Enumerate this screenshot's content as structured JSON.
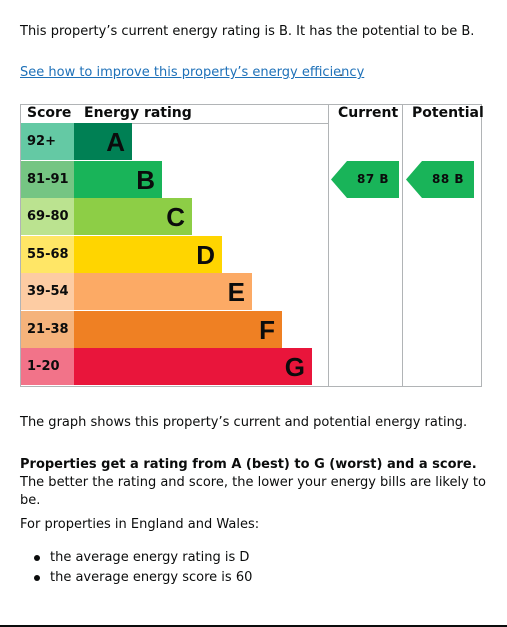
{
  "intro": "This property’s current energy rating is B. It has the potential to be B.",
  "improve_link": "See how to improve this property’s energy efficiency",
  "improve_link_suffix": ".",
  "chart": {
    "headers": {
      "score": "Score",
      "rating": "Energy rating",
      "current": "Current",
      "potential": "Potential"
    },
    "bands": [
      {
        "range": "92+",
        "letter": "A",
        "color": "#008054",
        "cellColor": "#64c9a4"
      },
      {
        "range": "81-91",
        "letter": "B",
        "color": "#19b459",
        "cellColor": "#75c583"
      },
      {
        "range": "69-80",
        "letter": "C",
        "color": "#8dce46",
        "cellColor": "#bbe390"
      },
      {
        "range": "55-68",
        "letter": "D",
        "color": "#ffd500",
        "cellColor": "#ffe666"
      },
      {
        "range": "39-54",
        "letter": "E",
        "color": "#fcaa65",
        "cellColor": "#fdcca3"
      },
      {
        "range": "21-38",
        "letter": "F",
        "color": "#ef8023",
        "cellColor": "#f5b37b"
      },
      {
        "range": "1-20",
        "letter": "G",
        "color": "#e9153b",
        "cellColor": "#f27389"
      }
    ],
    "current": {
      "label": "87 B",
      "score": 87,
      "band": "B",
      "color": "#19b459"
    },
    "potential": {
      "label": "88 B",
      "score": 88,
      "band": "B",
      "color": "#19b459"
    }
  },
  "caption": "The graph shows this property’s current and potential energy rating.",
  "range_bold": "Properties get a rating from A (best) to G (worst) and a score.",
  "range_rest": " The better the rating and score, the lower your energy bills are likely to be.",
  "region": "For properties in England and Wales:",
  "averages": [
    "the average energy rating is D",
    "the average energy score is 60"
  ],
  "colors": {
    "link": "#1d70b8",
    "text": "#0b0c0c",
    "border": "#b1b4b6"
  }
}
